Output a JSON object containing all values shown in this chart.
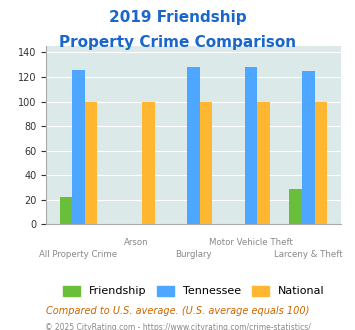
{
  "title_line1": "2019 Friendship",
  "title_line2": "Property Crime Comparison",
  "categories": [
    "All Property Crime",
    "Arson",
    "Burglary",
    "Motor Vehicle Theft",
    "Larceny & Theft"
  ],
  "friendship": [
    22,
    0,
    0,
    0,
    29
  ],
  "tennessee": [
    126,
    0,
    128,
    128,
    125
  ],
  "national": [
    100,
    100,
    100,
    100,
    100
  ],
  "bar_width": 0.22,
  "friendship_color": "#6abf3a",
  "tennessee_color": "#4da6ff",
  "national_color": "#ffb732",
  "ylim": [
    0,
    145
  ],
  "yticks": [
    0,
    20,
    40,
    60,
    80,
    100,
    120,
    140
  ],
  "bg_color": "#dce9e9",
  "title_color": "#1a66cc",
  "xlabel_color": "#888888",
  "legend_label_friendship": "Friendship",
  "legend_label_tennessee": "Tennessee",
  "legend_label_national": "National",
  "footnote1": "Compared to U.S. average. (U.S. average equals 100)",
  "footnote2": "© 2025 CityRating.com - https://www.cityrating.com/crime-statistics/",
  "footnote1_color": "#cc6600",
  "footnote2_color": "#888888"
}
